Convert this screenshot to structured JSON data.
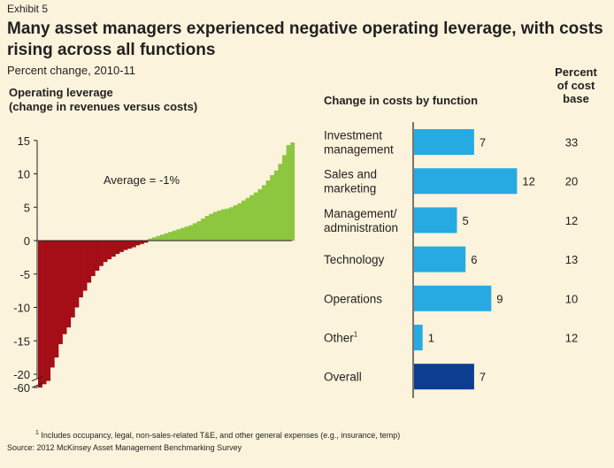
{
  "header": {
    "exhibit": "Exhibit 5",
    "title": "Many asset managers experienced negative operating leverage, with costs rising across all functions",
    "subtitle": "Percent change, 2010-11",
    "left_heading": "Operating leverage\n(change in revenues versus costs)",
    "right_heading": "Change in costs by function",
    "pct_heading": "Percent\nof cost\nbase"
  },
  "footer": {
    "footnote_marker": "1",
    "footnote": " Includes occupancy, legal, non-sales-related T&E, and other general expenses (e.g., insurance, temp)",
    "source": "Source: 2012 McKinsey Asset Management Benchmarking Survey"
  },
  "colors": {
    "background": "#fbf3dc",
    "negative": "#a50e16",
    "positive": "#8dc63f",
    "function_bar": "#27aae1",
    "overall_bar": "#0b3d91",
    "text": "#231f20"
  },
  "chart_data": [
    {
      "type": "bar",
      "title": "Operating leverage (change in revenues versus costs)",
      "ylim": [
        -22,
        15
      ],
      "y_ticks": [
        "15",
        "10",
        "5",
        "0",
        "-5",
        "-10",
        "-15",
        "-20",
        "-60"
      ],
      "y_tick_values": [
        15,
        10,
        5,
        0,
        -5,
        -10,
        -15,
        -20,
        -22
      ],
      "axis_break": "between -20 and -60",
      "annotation": "Average = -1%",
      "values": [
        -60,
        -21.5,
        -21,
        -19,
        -17.5,
        -15.5,
        -14,
        -13,
        -11.5,
        -10,
        -8.5,
        -7.5,
        -6.3,
        -5.3,
        -4.5,
        -3.8,
        -3.2,
        -2.8,
        -2.4,
        -2,
        -1.7,
        -1.4,
        -1.2,
        -1,
        -0.7,
        -0.5,
        -0.3,
        0.3,
        0.5,
        0.7,
        0.9,
        1.1,
        1.3,
        1.5,
        1.7,
        1.9,
        2.1,
        2.3,
        2.6,
        2.9,
        3.3,
        3.7,
        4,
        4.3,
        4.5,
        4.7,
        4.8,
        5,
        5.3,
        5.6,
        6,
        6.4,
        6.8,
        7.2,
        7.7,
        8.3,
        9,
        9.8,
        10.5,
        11.5,
        12.8,
        14.3,
        14.7
      ]
    },
    {
      "type": "bar",
      "orientation": "horizontal",
      "title": "Change in costs by function",
      "categories": [
        "Investment management",
        "Sales and marketing",
        "Management/ administration",
        "Technology",
        "Operations",
        "Other",
        "Overall"
      ],
      "category_lines": [
        [
          "Investment",
          "management"
        ],
        [
          "Sales and",
          "marketing"
        ],
        [
          "Management/",
          "administration"
        ],
        [
          "Technology"
        ],
        [
          "Operations"
        ],
        [
          "Other"
        ],
        [
          "Overall"
        ]
      ],
      "other_marker": "1",
      "values": [
        7,
        12,
        5,
        6,
        9,
        1,
        7
      ],
      "percent_of_cost_base": [
        33,
        20,
        12,
        13,
        10,
        12,
        null
      ]
    }
  ]
}
